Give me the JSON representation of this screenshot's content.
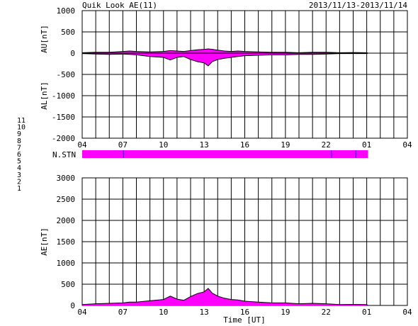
{
  "header": {
    "title": "Quik Look AE(11)",
    "date_range": "2013/11/13-2013/11/14"
  },
  "chart_data": [
    {
      "type": "area",
      "name": "AU/AL panel",
      "ylabel_top": "AU[nT]",
      "ylabel_bottom": "AL[nT]",
      "ylim": [
        -2000,
        1000
      ],
      "yticks": [
        1000,
        500,
        0,
        -500,
        -1000,
        -1500,
        -2000
      ],
      "x_hours_range": [
        4,
        28
      ],
      "xtick_labels": [
        "04",
        "07",
        "10",
        "13",
        "16",
        "19",
        "22",
        "01",
        "04"
      ],
      "data_end_hour": 25.1,
      "series": [
        {
          "name": "AU",
          "x": [
            4,
            5,
            6,
            7,
            7.5,
            8,
            9,
            10,
            10.5,
            11,
            11.5,
            12,
            12.5,
            13,
            13.3,
            13.6,
            14,
            14.5,
            15,
            15.5,
            16,
            17,
            18,
            19,
            20,
            21,
            22,
            23,
            24,
            25,
            25.1
          ],
          "values": [
            10,
            20,
            20,
            40,
            50,
            40,
            30,
            40,
            60,
            50,
            40,
            60,
            80,
            90,
            100,
            90,
            70,
            50,
            40,
            50,
            40,
            30,
            20,
            20,
            10,
            20,
            20,
            10,
            15,
            10,
            0
          ]
        },
        {
          "name": "AL",
          "x": [
            4,
            5,
            6,
            7,
            7.5,
            8,
            9,
            10,
            10.5,
            11,
            11.5,
            12,
            12.5,
            13,
            13.3,
            13.6,
            14,
            14.5,
            15,
            15.5,
            16,
            17,
            18,
            19,
            20,
            21,
            22,
            23,
            24,
            25,
            25.1
          ],
          "values": [
            -10,
            -20,
            -30,
            -20,
            -30,
            -40,
            -80,
            -100,
            -160,
            -100,
            -80,
            -150,
            -200,
            -230,
            -300,
            -200,
            -150,
            -120,
            -100,
            -80,
            -60,
            -50,
            -40,
            -40,
            -30,
            -30,
            -20,
            -10,
            -10,
            -10,
            0
          ]
        }
      ]
    },
    {
      "type": "bar",
      "name": "station count",
      "label": "N.STN",
      "legend": [
        "11",
        "10",
        "9",
        "8",
        "7",
        "6",
        "5",
        "4",
        "3",
        "2",
        "1"
      ],
      "legend_colors": [
        "#00ffff",
        "#ff00ff",
        "#0000ff",
        "#ffff00",
        "#00ff00",
        "#ff0000",
        "#c0c0c0",
        "#808080",
        "#00bfbf",
        "#ff00aa",
        "#0000c0"
      ],
      "value": 10,
      "x_hours_range": [
        4,
        25.1
      ],
      "gap_hours": [
        7.05,
        22.4,
        24.2
      ]
    },
    {
      "type": "area",
      "name": "AE panel",
      "ylabel": "AE[nT]",
      "xlabel": "Time [UT]",
      "ylim": [
        0,
        3000
      ],
      "yticks": [
        3000,
        2500,
        2000,
        1500,
        1000,
        500,
        0
      ],
      "x_hours_range": [
        4,
        28
      ],
      "xtick_labels": [
        "04",
        "07",
        "10",
        "13",
        "16",
        "19",
        "22",
        "01",
        "04"
      ],
      "data_end_hour": 25.1,
      "series": [
        {
          "name": "AE",
          "x": [
            4,
            5,
            6,
            7,
            7.5,
            8,
            9,
            10,
            10.5,
            11,
            11.5,
            12,
            12.5,
            13,
            13.3,
            13.6,
            14,
            14.5,
            15,
            15.5,
            16,
            17,
            18,
            19,
            20,
            21,
            22,
            23,
            24,
            25,
            25.1
          ],
          "values": [
            20,
            40,
            50,
            60,
            80,
            80,
            110,
            140,
            220,
            150,
            120,
            210,
            280,
            320,
            400,
            290,
            220,
            170,
            140,
            130,
            100,
            80,
            60,
            60,
            40,
            50,
            40,
            20,
            25,
            20,
            0
          ]
        }
      ]
    }
  ],
  "colors": {
    "fill": "#ff00ff",
    "line": "#000000",
    "nstn_bar": "#ff00ff",
    "nstn_gap": "#0000ff"
  }
}
